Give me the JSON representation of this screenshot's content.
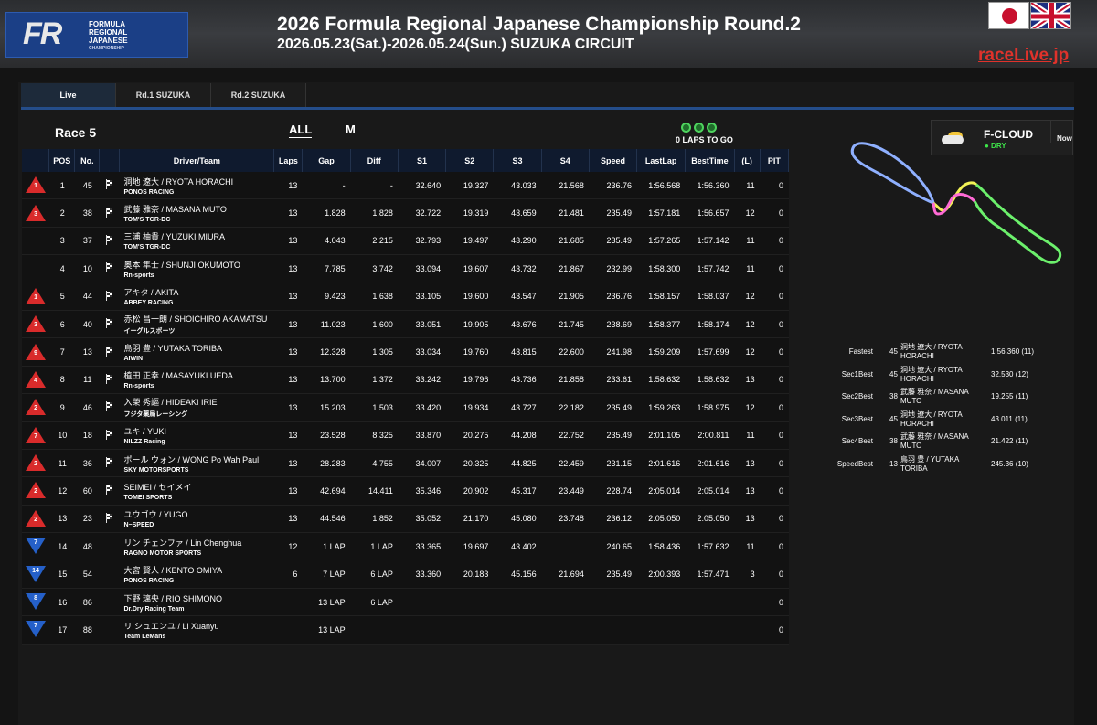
{
  "header": {
    "logo_mark": "FR",
    "logo_text": [
      "FORMULA",
      "REGIONAL",
      "JAPANESE",
      "CHAMPIONSHIP"
    ],
    "title": "2026 Formula Regional Japanese Championship Round.2",
    "subtitle": "2026.05.23(Sat.)-2026.05.24(Sun.) SUZUKA CIRCUIT",
    "brand": "raceLive.jp",
    "languages": [
      "jp-flag-icon",
      "uk-flag-icon"
    ]
  },
  "tabs": [
    {
      "label": "Live",
      "active": true
    },
    {
      "label": "Rd.1 SUZUKA",
      "active": false
    },
    {
      "label": "Rd.2 SUZUKA",
      "active": false
    }
  ],
  "race": {
    "title": "Race 5",
    "filter_all": "ALL",
    "filter_m": "M",
    "laps_to_go": "0 LAPS TO GO"
  },
  "columns": [
    "",
    "POS",
    "No.",
    "",
    "Driver/Team",
    "Laps",
    "Gap",
    "Diff",
    "S1",
    "S2",
    "S3",
    "S4",
    "Speed",
    "LastLap",
    "BestTime",
    "(L)",
    "PIT"
  ],
  "rows": [
    {
      "chg": "1",
      "dir": "up",
      "pos": "1",
      "no": "45",
      "driver": "洞地 遼大 / RYOTA HORACHI",
      "team": "PONOS RACING",
      "laps": "13",
      "gap": "-",
      "diff": "-",
      "s1": "32.640",
      "s2": "19.327",
      "s3": "43.033",
      "s4": "21.568",
      "speed": "236.76",
      "last": "1:56.568",
      "best": "1:56.360",
      "l": "11",
      "pit": "0",
      "green": []
    },
    {
      "chg": "3",
      "dir": "up",
      "pos": "2",
      "no": "38",
      "driver": "武藤 雅奈 / MASANA MUTO",
      "team": "TOM'S TGR-DC",
      "laps": "13",
      "gap": "1.828",
      "diff": "1.828",
      "s1": "32.722",
      "s2": "19.319",
      "s3": "43.659",
      "s4": "21.481",
      "speed": "235.49",
      "last": "1:57.181",
      "best": "1:56.657",
      "l": "12",
      "pit": "0",
      "green": []
    },
    {
      "chg": "",
      "dir": "",
      "pos": "3",
      "no": "37",
      "driver": "三浦 柚貴 / YUZUKI MIURA",
      "team": "TOM'S TGR-DC",
      "laps": "13",
      "gap": "4.043",
      "diff": "2.215",
      "s1": "32.793",
      "s2": "19.497",
      "s3": "43.290",
      "s4": "21.685",
      "speed": "235.49",
      "last": "1:57.265",
      "best": "1:57.142",
      "l": "11",
      "pit": "0",
      "green": [
        "s1",
        "s3"
      ]
    },
    {
      "chg": "",
      "dir": "",
      "pos": "4",
      "no": "10",
      "driver": "奥本 隼士 / SHUNJI OKUMOTO",
      "team": "Rn-sports",
      "laps": "13",
      "gap": "7.785",
      "diff": "3.742",
      "s1": "33.094",
      "s2": "19.607",
      "s3": "43.732",
      "s4": "21.867",
      "speed": "232.99",
      "last": "1:58.300",
      "best": "1:57.742",
      "l": "11",
      "pit": "0",
      "green": []
    },
    {
      "chg": "1",
      "dir": "up",
      "pos": "5",
      "no": "44",
      "driver": "アキタ / AKITA",
      "team": "ABBEY RACING",
      "laps": "13",
      "gap": "9.423",
      "diff": "1.638",
      "s1": "33.105",
      "s2": "19.600",
      "s3": "43.547",
      "s4": "21.905",
      "speed": "236.76",
      "last": "1:58.157",
      "best": "1:58.037",
      "l": "12",
      "pit": "0",
      "green": [
        "s2"
      ]
    },
    {
      "chg": "3",
      "dir": "up",
      "pos": "6",
      "no": "40",
      "driver": "赤松 昌一朗 / SHOICHIRO AKAMATSU",
      "team": "イーグルスポーツ",
      "laps": "13",
      "gap": "11.023",
      "diff": "1.600",
      "s1": "33.051",
      "s2": "19.905",
      "s3": "43.676",
      "s4": "21.745",
      "speed": "238.69",
      "last": "1:58.377",
      "best": "1:58.174",
      "l": "12",
      "pit": "0",
      "green": [
        "s1"
      ]
    },
    {
      "chg": "9",
      "dir": "up",
      "pos": "7",
      "no": "13",
      "driver": "鳥羽 豊 / YUTAKA TORIBA",
      "team": "AIWIN",
      "laps": "13",
      "gap": "12.328",
      "diff": "1.305",
      "s1": "33.034",
      "s2": "19.760",
      "s3": "43.815",
      "s4": "22.600",
      "speed": "241.98",
      "last": "1:59.209",
      "best": "1:57.699",
      "l": "12",
      "pit": "0",
      "green": []
    },
    {
      "chg": "4",
      "dir": "up",
      "pos": "8",
      "no": "11",
      "driver": "植田 正幸 / MASAYUKI UEDA",
      "team": "Rn-sports",
      "laps": "13",
      "gap": "13.700",
      "diff": "1.372",
      "s1": "33.242",
      "s2": "19.796",
      "s3": "43.736",
      "s4": "21.858",
      "speed": "233.61",
      "last": "1:58.632",
      "best": "1:58.632",
      "l": "13",
      "pit": "0",
      "green": [
        "s3",
        "last"
      ]
    },
    {
      "chg": "2",
      "dir": "up",
      "pos": "9",
      "no": "46",
      "driver": "入榮 秀謳 / HIDEAKI IRIE",
      "team": "フジタ薬局レーシング",
      "laps": "13",
      "gap": "15.203",
      "diff": "1.503",
      "s1": "33.420",
      "s2": "19.934",
      "s3": "43.727",
      "s4": "22.182",
      "speed": "235.49",
      "last": "1:59.263",
      "best": "1:58.975",
      "l": "12",
      "pit": "0",
      "green": [
        "s3"
      ]
    },
    {
      "chg": "7",
      "dir": "up",
      "pos": "10",
      "no": "18",
      "driver": "ユキ / YUKI",
      "team": "NILZZ Racing",
      "laps": "13",
      "gap": "23.528",
      "diff": "8.325",
      "s1": "33.870",
      "s2": "20.275",
      "s3": "44.208",
      "s4": "22.752",
      "speed": "235.49",
      "last": "2:01.105",
      "best": "2:00.811",
      "l": "11",
      "pit": "0",
      "green": [
        "s3"
      ]
    },
    {
      "chg": "2",
      "dir": "up",
      "pos": "11",
      "no": "36",
      "driver": "ポール ウォン / WONG Po Wah Paul",
      "team": "SKY MOTORSPORTS",
      "laps": "13",
      "gap": "28.283",
      "diff": "4.755",
      "s1": "34.007",
      "s2": "20.325",
      "s3": "44.825",
      "s4": "22.459",
      "speed": "231.15",
      "last": "2:01.616",
      "best": "2:01.616",
      "l": "13",
      "pit": "0",
      "green": [
        "s1",
        "last"
      ]
    },
    {
      "chg": "2",
      "dir": "up",
      "pos": "12",
      "no": "60",
      "driver": "SEIMEI / セイメイ",
      "team": "TOMEI SPORTS",
      "laps": "13",
      "gap": "42.694",
      "diff": "14.411",
      "s1": "35.346",
      "s2": "20.902",
      "s3": "45.317",
      "s4": "23.449",
      "speed": "228.74",
      "last": "2:05.014",
      "best": "2:05.014",
      "l": "13",
      "pit": "0",
      "green": [
        "s3",
        "last"
      ]
    },
    {
      "chg": "2",
      "dir": "up",
      "pos": "13",
      "no": "23",
      "driver": "ユウゴウ / YUGO",
      "team": "N−SPEED",
      "laps": "13",
      "gap": "44.546",
      "diff": "1.852",
      "s1": "35.052",
      "s2": "21.170",
      "s3": "45.080",
      "s4": "23.748",
      "speed": "236.12",
      "last": "2:05.050",
      "best": "2:05.050",
      "l": "13",
      "pit": "0",
      "green": [
        "s1",
        "s2",
        "s3",
        "last"
      ]
    },
    {
      "chg": "7",
      "dir": "down",
      "pos": "14",
      "no": "48",
      "driver": "リン チェンファ / Lin Chenghua",
      "team": "RAGNO MOTOR SPORTS",
      "laps": "12",
      "gap": "1 LAP",
      "diff": "1 LAP",
      "s1": "33.365",
      "s2": "19.697",
      "s3": "43.402",
      "s4": "",
      "speed": "240.65",
      "last": "1:58.436",
      "best": "1:57.632",
      "l": "11",
      "pit": "0",
      "green": [
        "s3"
      ]
    },
    {
      "chg": "14",
      "dir": "down",
      "pos": "15",
      "no": "54",
      "driver": "大宮 賢人 / KENTO OMIYA",
      "team": "PONOS RACING",
      "laps": "6",
      "gap": "7 LAP",
      "diff": "6 LAP",
      "s1": "33.360",
      "s2": "20.183",
      "s3": "45.156",
      "s4": "21.694",
      "speed": "235.49",
      "last": "2:00.393",
      "best": "1:57.471",
      "l": "3",
      "pit": "0",
      "green": [
        "s4"
      ]
    },
    {
      "chg": "8",
      "dir": "down",
      "pos": "16",
      "no": "86",
      "driver": "下野 璃央 / RIO SHIMONO",
      "team": "Dr.Dry Racing Team",
      "laps": "",
      "gap": "13 LAP",
      "diff": "6 LAP",
      "s1": "",
      "s2": "",
      "s3": "",
      "s4": "",
      "speed": "",
      "last": "",
      "best": "",
      "l": "",
      "pit": "0",
      "green": []
    },
    {
      "chg": "7",
      "dir": "down",
      "pos": "17",
      "no": "88",
      "driver": "リ シュエンユ / Li Xuanyu",
      "team": "Team LeMans",
      "laps": "",
      "gap": "13 LAP",
      "diff": "",
      "s1": "",
      "s2": "",
      "s3": "",
      "s4": "",
      "speed": "",
      "last": "",
      "best": "",
      "l": "",
      "pit": "0",
      "green": []
    }
  ],
  "weather": {
    "name": "F-CLOUD",
    "track": "● DRY",
    "now": "Now",
    "icon": "partly-cloudy-icon"
  },
  "bests": [
    {
      "label": "Fastest",
      "no": "45",
      "driver": "洞地 遼大 / RYOTA HORACHI",
      "value": "1:56.360 (11)"
    },
    {
      "label": "Sec1Best",
      "no": "45",
      "driver": "洞地 遼大 / RYOTA HORACHI",
      "value": "32.530 (12)"
    },
    {
      "label": "Sec2Best",
      "no": "38",
      "driver": "武藤 雅奈 / MASANA MUTO",
      "value": "19.255 (11)"
    },
    {
      "label": "Sec3Best",
      "no": "45",
      "driver": "洞地 遼大 / RYOTA HORACHI",
      "value": "43.011 (11)"
    },
    {
      "label": "Sec4Best",
      "no": "38",
      "driver": "武藤 雅奈 / MASANA MUTO",
      "value": "21.422 (11)"
    },
    {
      "label": "SpeedBest",
      "no": "13",
      "driver": "鳥羽 豊 / YUTAKA TORIBA",
      "value": "245.36 (10)"
    }
  ],
  "colors": {
    "accent": "#244d8a",
    "header_bg": "#0f1a2e",
    "best_green": "#3ee64a",
    "gain_red": "#d92b2b",
    "loss_blue": "#2560c9",
    "brand_red": "#e0322b"
  }
}
